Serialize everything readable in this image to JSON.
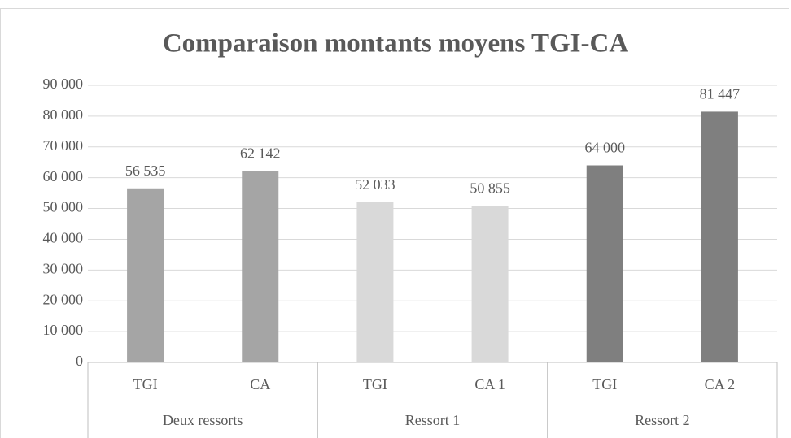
{
  "chart_data": {
    "type": "bar",
    "title": "Comparaison montants moyens TGI-CA",
    "groups": [
      {
        "name": "Deux ressorts",
        "color": "#a5a5a5",
        "categories": [
          "TGI",
          "CA"
        ],
        "values": [
          56535,
          62142
        ],
        "value_labels": [
          "56 535",
          "62 142"
        ]
      },
      {
        "name": "Ressort 1",
        "color": "#d9d9d9",
        "categories": [
          "TGI",
          "CA 1"
        ],
        "values": [
          52033,
          50855
        ],
        "value_labels": [
          "52 033",
          "50 855"
        ]
      },
      {
        "name": "Ressort 2",
        "color": "#7f7f7f",
        "categories": [
          "TGI",
          "CA 2"
        ],
        "values": [
          64000,
          81447
        ],
        "value_labels": [
          "64 000",
          "81 447"
        ]
      }
    ],
    "ylim": [
      0,
      90000
    ],
    "yticks": [
      0,
      {
        "value": 10000,
        "label": "10 000"
      },
      {
        "value": 20000,
        "label": "20 000"
      },
      {
        "value": 30000,
        "label": "30 000"
      },
      {
        "value": 40000,
        "label": "40 000"
      },
      {
        "value": 50000,
        "label": "50 000"
      },
      {
        "value": 60000,
        "label": "60 000"
      },
      {
        "value": 70000,
        "label": "70 000"
      },
      {
        "value": 80000,
        "label": "80 000"
      },
      {
        "value": 90000,
        "label": "90 000"
      }
    ],
    "grid": true
  }
}
